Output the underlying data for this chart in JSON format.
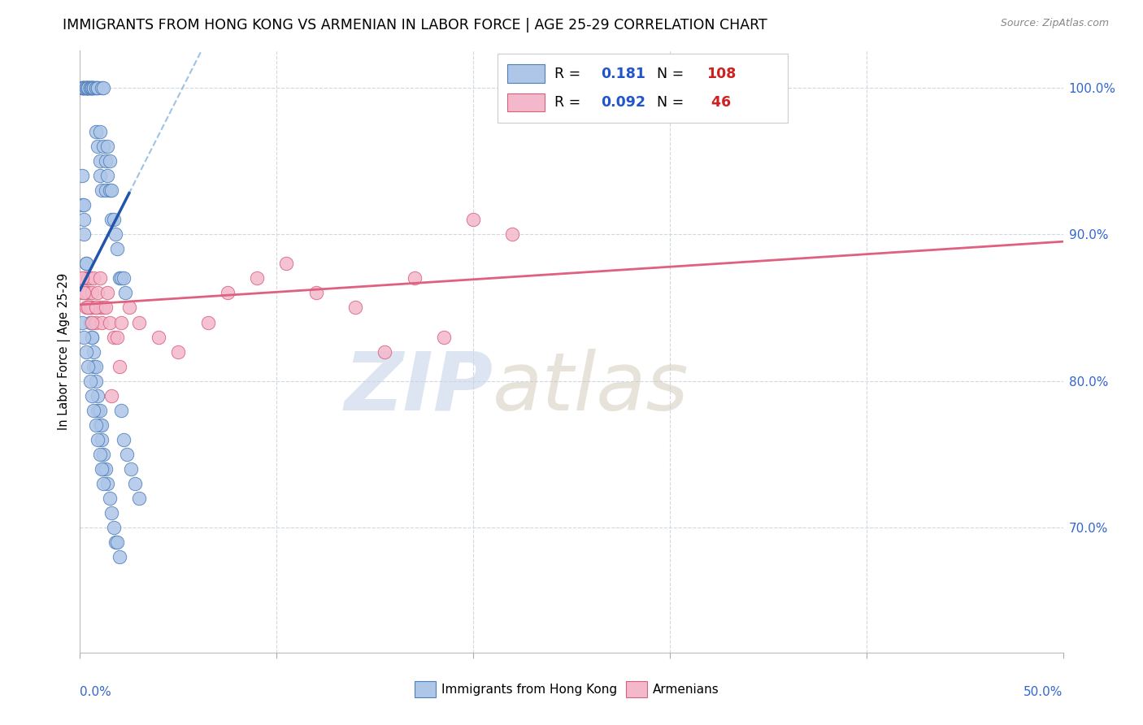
{
  "title": "IMMIGRANTS FROM HONG KONG VS ARMENIAN IN LABOR FORCE | AGE 25-29 CORRELATION CHART",
  "source": "Source: ZipAtlas.com",
  "ylabel": "In Labor Force | Age 25-29",
  "right_yticks": [
    1.0,
    0.9,
    0.8,
    0.7
  ],
  "right_yticklabels": [
    "100.0%",
    "90.0%",
    "80.0%",
    "70.0%"
  ],
  "xmin": 0.0,
  "xmax": 0.5,
  "ymin": 0.615,
  "ymax": 1.025,
  "legend_hk_R": "0.181",
  "legend_hk_N": "108",
  "legend_ar_R": "0.092",
  "legend_ar_N": "46",
  "hk_color": "#aec6e8",
  "hk_edge_color": "#4f7fba",
  "ar_color": "#f4b8cc",
  "ar_edge_color": "#d9607a",
  "trendline_hk_color": "#2255aa",
  "trendline_ar_color": "#e06080",
  "trendline_dashed_color": "#90b8e0",
  "grid_color": "#d0d8e0",
  "watermark_zip_color": "#c5d5e8",
  "watermark_atlas_color": "#d0c8b8",
  "hk_x": [
    0.001,
    0.001,
    0.001,
    0.002,
    0.002,
    0.002,
    0.002,
    0.003,
    0.003,
    0.003,
    0.003,
    0.003,
    0.004,
    0.004,
    0.004,
    0.004,
    0.004,
    0.005,
    0.005,
    0.005,
    0.005,
    0.006,
    0.006,
    0.006,
    0.006,
    0.007,
    0.007,
    0.007,
    0.008,
    0.008,
    0.008,
    0.009,
    0.009,
    0.009,
    0.01,
    0.01,
    0.01,
    0.011,
    0.011,
    0.012,
    0.012,
    0.013,
    0.013,
    0.014,
    0.014,
    0.015,
    0.015,
    0.016,
    0.016,
    0.017,
    0.018,
    0.019,
    0.02,
    0.021,
    0.022,
    0.023,
    0.001,
    0.001,
    0.002,
    0.002,
    0.002,
    0.003,
    0.003,
    0.003,
    0.004,
    0.004,
    0.005,
    0.005,
    0.006,
    0.006,
    0.007,
    0.007,
    0.008,
    0.008,
    0.009,
    0.009,
    0.01,
    0.01,
    0.011,
    0.011,
    0.012,
    0.012,
    0.013,
    0.014,
    0.015,
    0.016,
    0.017,
    0.018,
    0.019,
    0.02,
    0.021,
    0.022,
    0.024,
    0.026,
    0.028,
    0.03,
    0.001,
    0.002,
    0.003,
    0.004,
    0.005,
    0.006,
    0.007,
    0.008,
    0.009,
    0.01,
    0.011,
    0.012
  ],
  "hk_y": [
    1.0,
    1.0,
    1.0,
    1.0,
    1.0,
    1.0,
    1.0,
    1.0,
    1.0,
    1.0,
    1.0,
    1.0,
    1.0,
    1.0,
    1.0,
    1.0,
    1.0,
    1.0,
    1.0,
    1.0,
    1.0,
    1.0,
    1.0,
    1.0,
    1.0,
    1.0,
    1.0,
    1.0,
    1.0,
    1.0,
    0.97,
    1.0,
    1.0,
    0.96,
    0.95,
    0.94,
    0.97,
    0.93,
    1.0,
    1.0,
    0.96,
    0.95,
    0.93,
    0.94,
    0.96,
    0.93,
    0.95,
    0.93,
    0.91,
    0.91,
    0.9,
    0.89,
    0.87,
    0.87,
    0.87,
    0.86,
    0.94,
    0.92,
    0.91,
    0.9,
    0.92,
    0.88,
    0.86,
    0.88,
    0.87,
    0.85,
    0.85,
    0.84,
    0.83,
    0.83,
    0.82,
    0.81,
    0.81,
    0.8,
    0.79,
    0.78,
    0.78,
    0.77,
    0.77,
    0.76,
    0.75,
    0.74,
    0.74,
    0.73,
    0.72,
    0.71,
    0.7,
    0.69,
    0.69,
    0.68,
    0.78,
    0.76,
    0.75,
    0.74,
    0.73,
    0.72,
    0.84,
    0.83,
    0.82,
    0.81,
    0.8,
    0.79,
    0.78,
    0.77,
    0.76,
    0.75,
    0.74,
    0.73
  ],
  "ar_x": [
    0.001,
    0.002,
    0.003,
    0.003,
    0.004,
    0.004,
    0.005,
    0.005,
    0.006,
    0.006,
    0.007,
    0.008,
    0.008,
    0.009,
    0.01,
    0.011,
    0.012,
    0.014,
    0.015,
    0.017,
    0.019,
    0.021,
    0.025,
    0.03,
    0.04,
    0.05,
    0.065,
    0.075,
    0.09,
    0.105,
    0.12,
    0.14,
    0.155,
    0.17,
    0.185,
    0.2,
    0.22,
    0.001,
    0.002,
    0.004,
    0.006,
    0.008,
    0.01,
    0.013,
    0.016,
    0.02
  ],
  "ar_y": [
    0.86,
    0.87,
    0.85,
    0.86,
    0.87,
    0.86,
    0.85,
    0.87,
    0.86,
    0.85,
    0.87,
    0.85,
    0.84,
    0.86,
    0.85,
    0.84,
    0.85,
    0.86,
    0.84,
    0.83,
    0.83,
    0.84,
    0.85,
    0.84,
    0.83,
    0.82,
    0.84,
    0.86,
    0.87,
    0.88,
    0.86,
    0.85,
    0.82,
    0.87,
    0.83,
    0.91,
    0.9,
    0.87,
    0.86,
    0.85,
    0.84,
    0.85,
    0.87,
    0.85,
    0.79,
    0.81
  ]
}
